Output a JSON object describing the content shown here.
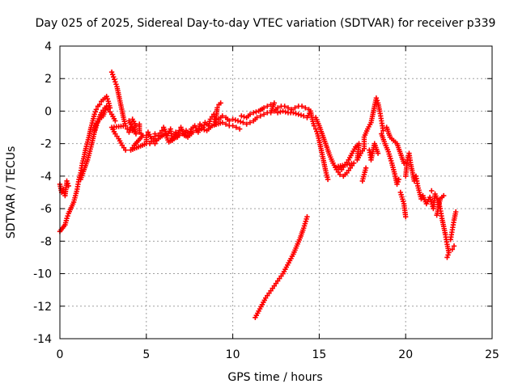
{
  "chart_data": {
    "type": "scatter",
    "title": "Day 025 of 2025, Sidereal Day-to-day VTEC variation (SDTVAR) for receiver p339",
    "xlabel": "GPS time / hours",
    "ylabel": "SDTVAR / TECUs",
    "xlim": [
      0,
      25
    ],
    "ylim": [
      -14,
      4
    ],
    "xticks": [
      0,
      5,
      10,
      15,
      20,
      25
    ],
    "yticks": [
      -14,
      -12,
      -10,
      -8,
      -6,
      -4,
      -2,
      0,
      2,
      4
    ],
    "grid": true,
    "legend": "none",
    "marker": "plus",
    "series": [
      {
        "name": "SDTVAR",
        "color": "#ff0000",
        "points": [
          [
            0.0,
            -4.5
          ],
          [
            0.1,
            -5.0
          ],
          [
            0.2,
            -4.8
          ],
          [
            0.3,
            -5.2
          ],
          [
            0.4,
            -4.3
          ],
          [
            0.5,
            -4.6
          ],
          [
            0.0,
            -7.4
          ],
          [
            0.15,
            -7.2
          ],
          [
            0.3,
            -7.0
          ],
          [
            0.4,
            -6.6
          ],
          [
            0.5,
            -6.3
          ],
          [
            0.8,
            -5.6
          ],
          [
            0.9,
            -5.2
          ],
          [
            1.0,
            -4.8
          ],
          [
            1.1,
            -4.2
          ],
          [
            1.2,
            -3.8
          ],
          [
            1.3,
            -3.2
          ],
          [
            1.4,
            -2.8
          ],
          [
            1.5,
            -2.3
          ],
          [
            1.6,
            -1.9
          ],
          [
            1.7,
            -1.5
          ],
          [
            1.8,
            -1.0
          ],
          [
            1.9,
            -0.6
          ],
          [
            2.0,
            -0.2
          ],
          [
            2.1,
            0.1
          ],
          [
            2.2,
            0.3
          ],
          [
            2.3,
            0.4
          ],
          [
            2.4,
            0.6
          ],
          [
            2.5,
            0.7
          ],
          [
            2.6,
            0.8
          ],
          [
            2.7,
            0.9
          ],
          [
            2.8,
            0.6
          ],
          [
            2.9,
            0.2
          ],
          [
            1.2,
            -4.2
          ],
          [
            1.4,
            -3.6
          ],
          [
            1.6,
            -3.0
          ],
          [
            1.8,
            -2.2
          ],
          [
            2.0,
            -1.3
          ],
          [
            2.2,
            -0.6
          ],
          [
            2.4,
            -0.1
          ],
          [
            2.6,
            0.2
          ],
          [
            2.8,
            0.1
          ],
          [
            3.0,
            -0.2
          ],
          [
            3.2,
            -0.6
          ],
          [
            2.0,
            -1.2
          ],
          [
            2.1,
            -0.8
          ],
          [
            2.3,
            -0.5
          ],
          [
            2.5,
            -0.3
          ],
          [
            2.7,
            0.3
          ],
          [
            3.0,
            2.4
          ],
          [
            3.1,
            2.1
          ],
          [
            3.2,
            1.8
          ],
          [
            3.3,
            1.5
          ],
          [
            3.4,
            1.0
          ],
          [
            3.5,
            0.5
          ],
          [
            3.6,
            0.0
          ],
          [
            3.7,
            -0.5
          ],
          [
            3.8,
            -0.9
          ],
          [
            3.0,
            -1.0
          ],
          [
            3.2,
            -1.4
          ],
          [
            3.4,
            -1.7
          ],
          [
            3.6,
            -2.1
          ],
          [
            3.8,
            -2.4
          ],
          [
            3.9,
            -1.1
          ],
          [
            4.0,
            -1.3
          ],
          [
            4.1,
            -1.0
          ],
          [
            4.2,
            -1.2
          ],
          [
            4.3,
            -1.0
          ],
          [
            4.4,
            -1.4
          ],
          [
            4.0,
            -0.6
          ],
          [
            4.2,
            -0.5
          ],
          [
            4.4,
            -0.9
          ],
          [
            4.6,
            -0.8
          ],
          [
            4.6,
            -1.3
          ],
          [
            4.8,
            -1.5
          ],
          [
            4.3,
            -2.1
          ],
          [
            4.1,
            -2.4
          ],
          [
            5.0,
            -2.0
          ],
          [
            5.0,
            -1.5
          ],
          [
            5.1,
            -1.3
          ],
          [
            5.3,
            -1.7
          ],
          [
            5.5,
            -2.0
          ],
          [
            5.5,
            -1.4
          ],
          [
            5.7,
            -1.5
          ],
          [
            5.9,
            -1.2
          ],
          [
            6.0,
            -1.0
          ],
          [
            6.2,
            -1.5
          ],
          [
            6.4,
            -1.1
          ],
          [
            6.5,
            -1.8
          ],
          [
            6.7,
            -1.3
          ],
          [
            6.8,
            -1.6
          ],
          [
            6.9,
            -1.2
          ],
          [
            7.0,
            -1.0
          ],
          [
            7.2,
            -1.5
          ],
          [
            7.3,
            -1.2
          ],
          [
            7.5,
            -1.4
          ],
          [
            7.6,
            -1.1
          ],
          [
            7.8,
            -0.9
          ],
          [
            8.0,
            -1.3
          ],
          [
            8.1,
            -0.8
          ],
          [
            8.3,
            -1.0
          ],
          [
            8.4,
            -0.7
          ],
          [
            8.6,
            -0.9
          ],
          [
            8.7,
            -0.5
          ],
          [
            8.9,
            -0.2
          ],
          [
            9.0,
            -0.8
          ],
          [
            9.1,
            0.2
          ],
          [
            9.2,
            0.4
          ],
          [
            9.3,
            0.5
          ],
          [
            5.2,
            -2.0
          ],
          [
            5.4,
            -1.7
          ],
          [
            5.6,
            -1.8
          ],
          [
            5.8,
            -1.6
          ],
          [
            6.1,
            -1.4
          ],
          [
            6.3,
            -1.9
          ],
          [
            6.6,
            -1.7
          ],
          [
            6.9,
            -1.5
          ],
          [
            7.1,
            -1.4
          ],
          [
            7.4,
            -1.6
          ],
          [
            7.7,
            -1.3
          ],
          [
            7.9,
            -1.2
          ],
          [
            8.2,
            -1.1
          ],
          [
            8.5,
            -1.2
          ],
          [
            8.8,
            -0.9
          ],
          [
            9.4,
            -0.7
          ],
          [
            9.6,
            -0.8
          ],
          [
            9.8,
            -0.9
          ],
          [
            10.0,
            -0.9
          ],
          [
            10.2,
            -1.0
          ],
          [
            10.4,
            -1.1
          ],
          [
            9.2,
            -0.5
          ],
          [
            9.4,
            -0.3
          ],
          [
            9.6,
            -0.4
          ],
          [
            9.8,
            -0.6
          ],
          [
            10.0,
            -0.5
          ],
          [
            10.3,
            -0.6
          ],
          [
            10.6,
            -0.7
          ],
          [
            10.8,
            -0.8
          ],
          [
            11.0,
            -0.7
          ],
          [
            11.2,
            -0.6
          ],
          [
            11.4,
            -0.4
          ],
          [
            11.6,
            -0.3
          ],
          [
            11.8,
            -0.2
          ],
          [
            12.0,
            -0.1
          ],
          [
            10.5,
            -0.3
          ],
          [
            10.8,
            -0.4
          ],
          [
            11.0,
            -0.2
          ],
          [
            11.2,
            -0.1
          ],
          [
            11.5,
            0.0
          ],
          [
            11.8,
            0.2
          ],
          [
            12.0,
            0.3
          ],
          [
            12.2,
            0.4
          ],
          [
            12.4,
            0.5
          ],
          [
            12.2,
            -0.1
          ],
          [
            12.4,
            0.0
          ],
          [
            12.6,
            0.2
          ],
          [
            12.8,
            0.3
          ],
          [
            13.0,
            0.3
          ],
          [
            13.2,
            0.2
          ],
          [
            13.4,
            0.1
          ],
          [
            13.6,
            0.2
          ],
          [
            13.8,
            0.3
          ],
          [
            14.0,
            0.3
          ],
          [
            14.2,
            0.2
          ],
          [
            14.4,
            0.1
          ],
          [
            12.6,
            -0.1
          ],
          [
            12.9,
            0.0
          ],
          [
            13.2,
            -0.1
          ],
          [
            13.5,
            -0.1
          ],
          [
            13.8,
            -0.2
          ],
          [
            14.1,
            -0.3
          ],
          [
            14.3,
            -0.4
          ],
          [
            14.5,
            0.0
          ],
          [
            14.6,
            -0.5
          ],
          [
            14.7,
            -0.9
          ],
          [
            14.8,
            -1.1
          ],
          [
            14.9,
            -1.4
          ],
          [
            15.0,
            -1.8
          ],
          [
            15.1,
            -2.3
          ],
          [
            15.2,
            -2.8
          ],
          [
            15.3,
            -3.3
          ],
          [
            15.4,
            -3.8
          ],
          [
            15.5,
            -4.2
          ],
          [
            14.8,
            -0.4
          ],
          [
            15.0,
            -0.9
          ],
          [
            15.2,
            -1.5
          ],
          [
            15.4,
            -2.1
          ],
          [
            15.6,
            -2.7
          ],
          [
            15.8,
            -3.2
          ],
          [
            16.0,
            -3.6
          ],
          [
            16.2,
            -3.9
          ],
          [
            16.4,
            -4.0
          ],
          [
            16.6,
            -3.8
          ],
          [
            16.8,
            -3.5
          ],
          [
            17.0,
            -3.2
          ],
          [
            16.1,
            -3.4
          ],
          [
            16.3,
            -3.6
          ],
          [
            16.5,
            -3.3
          ],
          [
            16.7,
            -3.0
          ],
          [
            16.9,
            -2.6
          ],
          [
            17.1,
            -2.2
          ],
          [
            17.3,
            -2.0
          ],
          [
            17.2,
            -3.0
          ],
          [
            17.4,
            -2.6
          ],
          [
            17.6,
            -2.3
          ],
          [
            17.6,
            -1.6
          ],
          [
            17.8,
            -1.1
          ],
          [
            18.0,
            -0.7
          ],
          [
            18.1,
            -0.2
          ],
          [
            18.2,
            0.3
          ],
          [
            18.3,
            0.8
          ],
          [
            18.4,
            0.5
          ],
          [
            18.5,
            0.0
          ],
          [
            18.6,
            -0.6
          ],
          [
            18.7,
            -1.2
          ],
          [
            17.5,
            -4.3
          ],
          [
            17.7,
            -3.5
          ],
          [
            17.9,
            -2.4
          ],
          [
            18.0,
            -3.0
          ],
          [
            18.2,
            -2.0
          ],
          [
            18.4,
            -2.6
          ],
          [
            18.6,
            -1.4
          ],
          [
            18.8,
            -2.0
          ],
          [
            19.0,
            -2.5
          ],
          [
            19.2,
            -3.2
          ],
          [
            19.4,
            -4.0
          ],
          [
            19.5,
            -4.5
          ],
          [
            19.6,
            -4.2
          ],
          [
            18.9,
            -1.0
          ],
          [
            19.1,
            -1.6
          ],
          [
            19.3,
            -1.8
          ],
          [
            19.5,
            -2.0
          ],
          [
            19.7,
            -2.6
          ],
          [
            19.9,
            -3.2
          ],
          [
            19.7,
            -5.0
          ],
          [
            19.9,
            -5.7
          ],
          [
            20.0,
            -6.5
          ],
          [
            20.0,
            -4.0
          ],
          [
            20.1,
            -3.0
          ],
          [
            20.2,
            -2.6
          ],
          [
            20.3,
            -3.3
          ],
          [
            20.4,
            -3.8
          ],
          [
            20.5,
            -4.3
          ],
          [
            20.6,
            -4.0
          ],
          [
            20.7,
            -4.6
          ],
          [
            20.8,
            -5.0
          ],
          [
            20.9,
            -5.4
          ],
          [
            21.0,
            -5.2
          ],
          [
            21.2,
            -5.7
          ],
          [
            21.4,
            -5.3
          ],
          [
            21.6,
            -6.0
          ],
          [
            21.7,
            -5.1
          ],
          [
            21.9,
            -5.6
          ],
          [
            22.0,
            -6.0
          ],
          [
            22.1,
            -6.6
          ],
          [
            22.2,
            -7.1
          ],
          [
            22.3,
            -7.6
          ],
          [
            22.4,
            -8.2
          ],
          [
            22.5,
            -8.7
          ],
          [
            22.4,
            -9.0
          ],
          [
            22.6,
            -7.9
          ],
          [
            22.7,
            -7.3
          ],
          [
            22.8,
            -6.7
          ],
          [
            22.9,
            -6.2
          ],
          [
            22.8,
            -8.3
          ],
          [
            22.7,
            -8.5
          ],
          [
            21.5,
            -4.9
          ],
          [
            21.8,
            -6.4
          ],
          [
            22.0,
            -5.4
          ],
          [
            22.2,
            -5.2
          ],
          [
            11.3,
            -12.7
          ],
          [
            11.5,
            -12.3
          ],
          [
            11.7,
            -11.9
          ],
          [
            11.9,
            -11.5
          ],
          [
            12.1,
            -11.2
          ],
          [
            12.3,
            -10.9
          ],
          [
            12.5,
            -10.6
          ],
          [
            12.7,
            -10.3
          ],
          [
            12.9,
            -10.0
          ],
          [
            13.1,
            -9.6
          ],
          [
            13.3,
            -9.2
          ],
          [
            13.5,
            -8.8
          ],
          [
            13.7,
            -8.3
          ],
          [
            13.9,
            -7.8
          ],
          [
            14.1,
            -7.2
          ],
          [
            14.3,
            -6.5
          ]
        ]
      }
    ]
  }
}
